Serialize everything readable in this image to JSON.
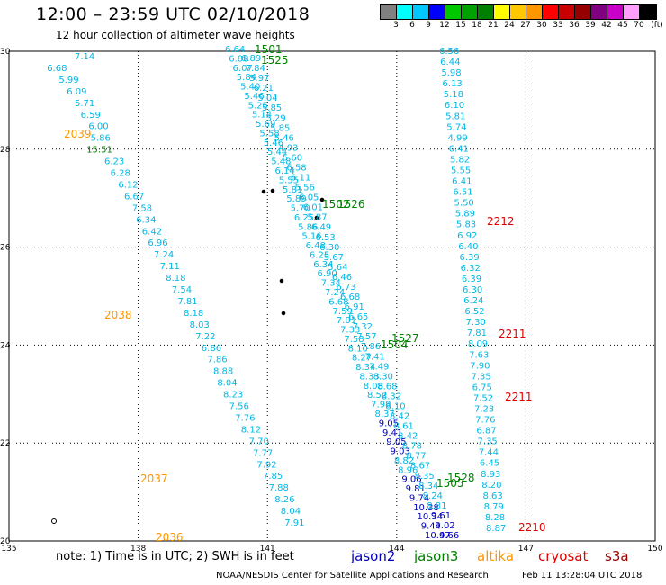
{
  "header": {
    "title": "12:00 – 23:59 UTC 02/10/2018",
    "subtitle": "12 hour collection of altimeter wave heights"
  },
  "legend": {
    "swatches": [
      "#808080",
      "#00ffff",
      "#00c8ff",
      "#0000ff",
      "#00c800",
      "#00a000",
      "#008000",
      "#ffff00",
      "#ffc800",
      "#ff9600",
      "#ff0000",
      "#c80000",
      "#960000",
      "#800080",
      "#c800c8",
      "#ffa0ff",
      "#000000"
    ],
    "labels": [
      "3",
      "6",
      "9",
      "12",
      "15",
      "18",
      "21",
      "24",
      "27",
      "30",
      "33",
      "36",
      "39",
      "42",
      "45",
      "70",
      "(ft)"
    ]
  },
  "axes": {
    "lon_ticks": [
      "135",
      "138",
      "141",
      "144",
      "147",
      "150"
    ],
    "lat_ticks": [
      "30",
      "28",
      "26",
      "24",
      "22",
      "20"
    ],
    "lon_range": [
      135,
      150
    ],
    "lat_range": [
      20,
      30
    ]
  },
  "colors": {
    "jason2": "#0000c0",
    "jason3": "#008000",
    "altika": "#ff9600",
    "cryosat": "#e00000",
    "s3a": "#a00000",
    "cyan": "#00b8e6"
  },
  "passes": [
    {
      "id": "altika",
      "label_color": "#ff9600",
      "points": [
        {
          "lon": 135.5,
          "lat": 29.88,
          "v": "7.14"
        },
        {
          "lon": 135.6,
          "lat": 29.6,
          "v": "6.68"
        },
        {
          "lon": 135.7,
          "lat": 29.33,
          "v": "5.99"
        },
        {
          "lon": 135.8,
          "lat": 29.06,
          "v": "6.09"
        },
        {
          "lon": 135.9,
          "lat": 28.79,
          "v": "5.71"
        },
        {
          "lon": 136.0,
          "lat": 28.52,
          "v": "6.59"
        },
        {
          "lon": 136.1,
          "lat": 28.25,
          "v": "6.00"
        },
        {
          "lon": 136.2,
          "lat": 27.98,
          "v": "5.86"
        },
        {
          "lon": 136.3,
          "lat": 27.71,
          "v": "15.51",
          "c": "#008000"
        },
        {
          "lon": 136.4,
          "lat": 27.44,
          "v": "6.23"
        },
        {
          "lon": 136.5,
          "lat": 27.17,
          "v": "6.28"
        },
        {
          "lon": 136.6,
          "lat": 26.9,
          "v": "6.12"
        },
        {
          "lon": 136.7,
          "lat": 26.63,
          "v": "6.67"
        },
        {
          "lon": 136.8,
          "lat": 26.36,
          "v": "7.58"
        },
        {
          "lon": 136.9,
          "lat": 26.09,
          "v": "6.34"
        },
        {
          "lon": 137.0,
          "lat": 25.82,
          "v": "6.42"
        },
        {
          "lon": 137.1,
          "lat": 25.55,
          "v": "6.96"
        },
        {
          "lon": 137.2,
          "lat": 25.28,
          "v": "7.24"
        },
        {
          "lon": 137.3,
          "lat": 25.01,
          "v": "7.11"
        },
        {
          "lon": 137.4,
          "lat": 24.74,
          "v": "8.18"
        },
        {
          "lon": 137.5,
          "lat": 24.47,
          "v": "7.54"
        },
        {
          "lon": 137.6,
          "lat": 24.2,
          "v": "7.81"
        },
        {
          "lon": 137.7,
          "lat": 23.93,
          "v": "8.18"
        },
        {
          "lon": 137.8,
          "lat": 23.66,
          "v": "8.03"
        },
        {
          "lon": 137.9,
          "lat": 23.39,
          "v": "7.22"
        },
        {
          "lon": 138.0,
          "lat": 23.12,
          "v": "6.86"
        },
        {
          "lon": 138.1,
          "lat": 22.85,
          "v": "7.86"
        },
        {
          "lon": 138.2,
          "lat": 22.58,
          "v": "8.88"
        },
        {
          "lon": 138.3,
          "lat": 22.31,
          "v": "8.04"
        },
        {
          "lon": 138.4,
          "lat": 22.04,
          "v": "8.23"
        },
        {
          "lon": 138.5,
          "lat": 21.77,
          "v": "7.56"
        },
        {
          "lon": 138.6,
          "lat": 21.5,
          "v": "7.76"
        },
        {
          "lon": 138.7,
          "lat": 21.23,
          "v": "8.12"
        },
        {
          "lon": 138.8,
          "lat": 20.96,
          "v": "7.70"
        },
        {
          "lon": 138.9,
          "lat": 20.69,
          "v": "7.77"
        },
        {
          "lon": 139.0,
          "lat": 20.42,
          "v": "7.92"
        },
        {
          "lon": 139.1,
          "lat": 20.15,
          "v": "7.85"
        },
        {
          "lon": 139.2,
          "lat": 19.88,
          "v": "7.88"
        },
        {
          "lon": 139.3,
          "lat": 19.61,
          "v": "8.26"
        },
        {
          "lon": 139.4,
          "lat": 19.34,
          "v": "8.04"
        },
        {
          "lon": 139.5,
          "lat": 19.07,
          "v": "7.91"
        }
      ]
    }
  ],
  "altika_track": [
    [
      "7.14",
      30,
      0
    ],
    [
      "6.68",
      16,
      0
    ],
    [
      "5.99",
      22,
      0
    ],
    [
      "6.09",
      26,
      0
    ],
    [
      "5.71",
      30,
      0
    ],
    [
      "6.59",
      33,
      0
    ],
    [
      "6.00",
      37,
      0
    ],
    [
      "5.86",
      38,
      0
    ],
    [
      "15.51",
      36,
      1
    ],
    [
      "6.23",
      45,
      0
    ],
    [
      "6.28",
      48,
      0
    ],
    [
      "6.12",
      52,
      0
    ],
    [
      "6.67",
      55,
      0
    ],
    [
      "7.58",
      59,
      0
    ],
    [
      "6.34",
      61,
      0
    ],
    [
      "6.42",
      64,
      0
    ],
    [
      "6.96",
      67,
      0
    ],
    [
      "7.24",
      70,
      0
    ],
    [
      "7.11",
      73,
      0
    ],
    [
      "8.18",
      76,
      0
    ],
    [
      "7.54",
      79,
      0
    ],
    [
      "7.81",
      82,
      0
    ],
    [
      "8.18",
      85,
      0
    ],
    [
      "8.03",
      88,
      0
    ],
    [
      "7.22",
      91,
      0
    ],
    [
      "6.86",
      94,
      0
    ],
    [
      "7.86",
      97,
      0
    ],
    [
      "8.88",
      100,
      0
    ],
    [
      "8.04",
      102,
      0
    ],
    [
      "8.23",
      105,
      0
    ],
    [
      "7.56",
      108,
      0
    ],
    [
      "7.76",
      111,
      0
    ],
    [
      "8.12",
      114,
      0
    ],
    [
      "7.70",
      118,
      0
    ],
    [
      "7.77",
      120,
      0
    ],
    [
      "7.92",
      122,
      0
    ],
    [
      "7.85",
      125,
      0
    ],
    [
      "7.88",
      128,
      0
    ],
    [
      "8.26",
      131,
      0
    ],
    [
      "8.04",
      134,
      0
    ],
    [
      "7.91",
      136,
      0
    ]
  ],
  "altika_labels": [
    {
      "text": "2039",
      "x": 71,
      "y": 153
    },
    {
      "text": "2038",
      "x": 116,
      "y": 354
    },
    {
      "text": "2037",
      "x": 156,
      "y": 536
    },
    {
      "text": "2036",
      "x": 173,
      "y": 601
    }
  ],
  "jason3_labels": [
    {
      "text": "1501",
      "x": 283,
      "y": 59
    },
    {
      "text": "1525",
      "x": 290,
      "y": 71
    },
    {
      "text": "1502",
      "x": 358,
      "y": 231
    },
    {
      "text": "1526",
      "x": 375,
      "y": 231
    },
    {
      "text": "1527",
      "x": 435,
      "y": 380
    },
    {
      "text": "1504",
      "x": 423,
      "y": 387
    },
    {
      "text": "1528",
      "x": 497,
      "y": 535
    },
    {
      "text": "1505",
      "x": 485,
      "y": 541
    }
  ],
  "cryosat_labels": [
    {
      "text": "2212",
      "x": 541,
      "y": 250
    },
    {
      "text": "2211",
      "x": 554,
      "y": 375
    },
    {
      "text": "2211",
      "x": 561,
      "y": 445
    },
    {
      "text": "2210",
      "x": 576,
      "y": 590
    }
  ],
  "right_track": [
    "6.56",
    "6.44",
    "5.98",
    "6.13",
    "5.18",
    "6.10",
    "5.81",
    "5.74",
    "4.99",
    "6.41",
    "5.82",
    "5.55",
    "6.41",
    "6.51",
    "5.50",
    "5.89",
    "5.83",
    "6.92",
    "6.40",
    "6.39",
    "6.32",
    "6.39",
    "6.30",
    "6.24",
    "6.52",
    "7.30",
    "7.81",
    "8.09",
    "7.63",
    "7.90",
    "7.35",
    "6.75",
    "7.52",
    "7.23",
    "7.76",
    "6.87",
    "7.35",
    "7.44",
    "6.45",
    "8.93",
    "8.20",
    "8.63",
    "8.79",
    "8.28",
    "8.87"
  ],
  "mid_track": [
    "6.64",
    "6.88",
    "6.07",
    "5.84",
    "5.40",
    "5.46",
    "5.25",
    "5.14",
    "5.69",
    "5.58",
    "5.46",
    "5.44",
    "5.48",
    "6.14",
    "5.55",
    "5.81",
    "5.89",
    "5.70",
    "6.25",
    "5.86",
    "5.16",
    "6.48",
    "6.25",
    "6.34",
    "6.90",
    "7.34",
    "7.24",
    "6.68",
    "7.59",
    "7.01",
    "7.33",
    "7.58",
    "8.10",
    "8.27",
    "8.34",
    "8.33",
    "8.08",
    "8.52",
    "7.98",
    "8.37",
    "9.05",
    "9.41",
    "9.05",
    "9.03",
    "8.82",
    "8.96",
    "9.06",
    "9.81",
    "9.74",
    "10.38",
    "10.34",
    "9.44",
    "10.47"
  ],
  "mid_track2": [
    "6.89",
    "7.84",
    "5.97",
    "6.21",
    "5.04",
    "5.85",
    "5.29",
    "5.85",
    "5.46",
    "4.93",
    "5.60",
    "6.58",
    "6.11",
    "5.56",
    "6.05",
    "6.01",
    "5.87",
    "6.49",
    "6.53",
    "6.30",
    "5.67",
    "5.64",
    "6.46",
    "6.73",
    "6.68",
    "6.91",
    "6.65",
    "7.32",
    "7.57",
    "7.86",
    "7.41",
    "7.49",
    "8.30",
    "8.68",
    "8.32",
    "8.10",
    "8.42",
    "8.61",
    "8.42",
    "8.78",
    "8.77",
    "8.67",
    "8.35",
    "8.34",
    "8.24",
    "8.81",
    "9.61",
    "9.02",
    "9.66"
  ],
  "footer": {
    "note": "note: 1) Time is in UTC; 2) SWH is in feet",
    "sat_jason2": "jason2",
    "sat_jason3": "jason3",
    "sat_altika": "altika",
    "sat_cryosat": "cryosat",
    "sat_s3a": "s3a",
    "credit": "NOAA/NESDIS Center for Satellite Applications and Research",
    "timestamp": "Feb 11 13:28:04 UTC 2018"
  }
}
